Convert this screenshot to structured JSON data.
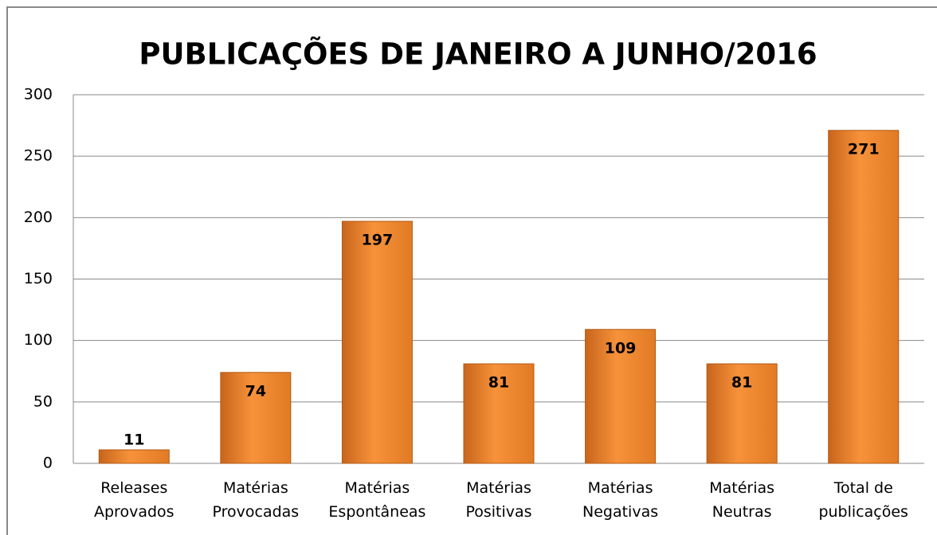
{
  "chart_data": {
    "type": "bar",
    "title": "PUBLICAÇÕES DE JANEIRO A JUNHO/2016",
    "categories": [
      "Releases Aprovados",
      "Matérias Provocadas",
      "Matérias Espontâneas",
      "Matérias Positivas",
      "Matérias Negativas",
      "Matérias Neutras",
      "Total de publicações"
    ],
    "values": [
      11,
      74,
      197,
      81,
      109,
      81,
      271
    ],
    "color": "#f7923a",
    "ylim": [
      0,
      300
    ],
    "yticks": [
      0,
      50,
      100,
      150,
      200,
      250,
      300
    ],
    "grid": true
  }
}
